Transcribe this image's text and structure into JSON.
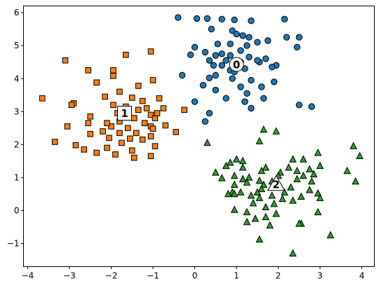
{
  "colors": {
    "class_0": "#1f77b4",
    "class_1": "#ff7f0e",
    "class_2": "#2ca02c",
    "edge": "#000000"
  },
  "chart_data": {
    "type": "scatter",
    "title": "",
    "xlabel": "",
    "ylabel": "",
    "xlim": [
      -4.1,
      4.3
    ],
    "ylim": [
      -1.7,
      6.2
    ],
    "xticks": [
      -4,
      -3,
      -2,
      -1,
      0,
      1,
      2,
      3,
      4
    ],
    "yticks": [
      -1,
      0,
      1,
      2,
      3,
      4,
      5,
      6
    ],
    "grid": false,
    "series": [
      {
        "marker": "circle",
        "color": "#1f77b4",
        "points": [
          [
            -0.4,
            5.85
          ],
          [
            0.05,
            5.82
          ],
          [
            0.3,
            5.82
          ],
          [
            0.65,
            5.8
          ],
          [
            0.95,
            5.78
          ],
          [
            1.35,
            5.75
          ],
          [
            2.15,
            5.8
          ],
          [
            0.4,
            5.5
          ],
          [
            0.9,
            5.45
          ],
          [
            1.0,
            5.35
          ],
          [
            1.15,
            5.3
          ],
          [
            1.3,
            5.25
          ],
          [
            2.2,
            5.25
          ],
          [
            2.5,
            5.25
          ],
          [
            1.75,
            5.15
          ],
          [
            0.55,
            5.05
          ],
          [
            0.85,
            5.05
          ],
          [
            1.25,
            5.0
          ],
          [
            0.0,
            4.95
          ],
          [
            -0.1,
            4.72
          ],
          [
            2.45,
            4.95
          ],
          [
            0.25,
            4.8
          ],
          [
            0.65,
            4.75
          ],
          [
            0.85,
            4.7
          ],
          [
            1.3,
            4.65
          ],
          [
            1.7,
            4.6
          ],
          [
            0.35,
            4.55
          ],
          [
            0.75,
            4.55
          ],
          [
            1.1,
            4.5
          ],
          [
            1.55,
            4.5
          ],
          [
            0.65,
            4.4
          ],
          [
            1.95,
            4.4
          ],
          [
            1.2,
            4.3
          ],
          [
            -0.3,
            4.1
          ],
          [
            0.5,
            4.1
          ],
          [
            0.35,
            4.02
          ],
          [
            0.9,
            4.0
          ],
          [
            1.35,
            3.95
          ],
          [
            0.2,
            3.8
          ],
          [
            1.1,
            3.75
          ],
          [
            1.6,
            3.75
          ],
          [
            1.25,
            3.55
          ],
          [
            0.5,
            3.65
          ],
          [
            0.75,
            3.4
          ],
          [
            1.65,
            3.4
          ],
          [
            1.2,
            3.3
          ],
          [
            0.0,
            3.3
          ],
          [
            2.5,
            3.2
          ],
          [
            2.8,
            3.15
          ],
          [
            1.35,
            3.1
          ],
          [
            0.35,
            2.95
          ],
          [
            0.25,
            2.7
          ],
          [
            0.45,
            4.4
          ],
          [
            0.85,
            4.25
          ],
          [
            1.85,
            4.35
          ],
          [
            1.5,
            5.1
          ],
          [
            1.1,
            4.85
          ],
          [
            0.5,
            4.7
          ],
          [
            1.9,
            3.9
          ],
          [
            0.95,
            4.2
          ],
          [
            1.5,
            4.55
          ],
          [
            1.0,
            4.4
          ]
        ]
      },
      {
        "marker": "square",
        "color": "#ff7f0e",
        "points": [
          [
            -3.1,
            4.55
          ],
          [
            -1.65,
            4.72
          ],
          [
            -1.05,
            4.82
          ],
          [
            -1.95,
            4.25
          ],
          [
            -2.55,
            4.25
          ],
          [
            -1.95,
            4.08
          ],
          [
            -1.0,
            3.95
          ],
          [
            -2.35,
            3.88
          ],
          [
            -1.35,
            3.78
          ],
          [
            -3.65,
            3.4
          ],
          [
            -1.8,
            3.6
          ],
          [
            -2.15,
            3.45
          ],
          [
            -1.5,
            3.42
          ],
          [
            -1.25,
            3.32
          ],
          [
            -0.85,
            3.4
          ],
          [
            -1.95,
            3.2
          ],
          [
            -1.65,
            3.15
          ],
          [
            -2.9,
            3.25
          ],
          [
            -2.95,
            3.2
          ],
          [
            -0.75,
            3.1
          ],
          [
            -0.25,
            3.05
          ],
          [
            -1.15,
            3.1
          ],
          [
            -1.35,
            3.05
          ],
          [
            -1.85,
            2.95
          ],
          [
            -1.05,
            2.9
          ],
          [
            -2.5,
            2.85
          ],
          [
            -1.45,
            2.8
          ],
          [
            -0.95,
            2.8
          ],
          [
            -1.2,
            2.65
          ],
          [
            -2.55,
            2.65
          ],
          [
            -2.0,
            2.55
          ],
          [
            -1.6,
            2.5
          ],
          [
            -1.05,
            2.55
          ],
          [
            -0.7,
            2.58
          ],
          [
            -3.05,
            2.55
          ],
          [
            -1.8,
            2.35
          ],
          [
            -1.4,
            2.35
          ],
          [
            -2.2,
            2.4
          ],
          [
            -0.45,
            2.38
          ],
          [
            -2.5,
            2.32
          ],
          [
            -1.05,
            2.25
          ],
          [
            -2.05,
            2.2
          ],
          [
            -1.55,
            2.18
          ],
          [
            -1.25,
            2.15
          ],
          [
            -3.35,
            2.08
          ],
          [
            -1.75,
            2.05
          ],
          [
            -2.85,
            1.98
          ],
          [
            -0.95,
            1.95
          ],
          [
            -2.1,
            1.9
          ],
          [
            -2.65,
            1.85
          ],
          [
            -2.35,
            1.75
          ],
          [
            -1.5,
            1.82
          ],
          [
            -1.9,
            1.7
          ],
          [
            -1.05,
            1.65
          ],
          [
            -1.45,
            1.6
          ],
          [
            -1.8,
            2.7
          ],
          [
            -0.9,
            2.95
          ],
          [
            -2.1,
            2.65
          ],
          [
            -1.0,
            2.48
          ]
        ]
      },
      {
        "marker": "triangle",
        "color": "#2ca02c",
        "points": [
          [
            1.65,
            2.45
          ],
          [
            1.95,
            2.4
          ],
          [
            0.3,
            2.05
          ],
          [
            1.55,
            2.1
          ],
          [
            3.8,
            1.95
          ],
          [
            2.95,
            1.75
          ],
          [
            3.95,
            1.65
          ],
          [
            1.0,
            1.55
          ],
          [
            1.15,
            1.5
          ],
          [
            2.6,
            1.55
          ],
          [
            2.35,
            1.55
          ],
          [
            3.0,
            1.35
          ],
          [
            0.85,
            1.45
          ],
          [
            2.25,
            1.3
          ],
          [
            1.15,
            1.3
          ],
          [
            0.75,
            1.35
          ],
          [
            1.7,
            1.3
          ],
          [
            2.75,
            1.25
          ],
          [
            0.5,
            1.15
          ],
          [
            1.6,
            1.2
          ],
          [
            2.05,
            1.15
          ],
          [
            3.65,
            1.2
          ],
          [
            2.85,
            1.1
          ],
          [
            2.6,
            1.05
          ],
          [
            2.0,
            1.05
          ],
          [
            0.95,
            1.05
          ],
          [
            1.3,
            1.0
          ],
          [
            0.65,
            0.98
          ],
          [
            2.45,
            0.95
          ],
          [
            1.55,
            0.9
          ],
          [
            1.85,
            0.88
          ],
          [
            1.25,
            0.85
          ],
          [
            2.8,
            0.88
          ],
          [
            0.95,
            0.78
          ],
          [
            3.85,
            0.88
          ],
          [
            1.65,
            0.78
          ],
          [
            1.95,
            0.75
          ],
          [
            2.3,
            0.7
          ],
          [
            1.6,
            0.65
          ],
          [
            2.75,
            0.62
          ],
          [
            0.9,
            0.55
          ],
          [
            1.1,
            0.55
          ],
          [
            1.5,
            0.55
          ],
          [
            0.95,
            0.5
          ],
          [
            2.95,
            0.52
          ],
          [
            0.8,
            0.5
          ],
          [
            1.35,
            0.45
          ],
          [
            2.55,
            0.42
          ],
          [
            1.85,
            0.45
          ],
          [
            3.0,
            0.38
          ],
          [
            1.55,
            0.38
          ],
          [
            2.1,
            0.35
          ],
          [
            1.4,
            0.22
          ],
          [
            2.35,
            0.3
          ],
          [
            1.9,
            0.2
          ],
          [
            1.7,
            0.1
          ],
          [
            0.95,
            0.02
          ],
          [
            1.25,
            -0.05
          ],
          [
            1.95,
            -0.1
          ],
          [
            2.95,
            -0.05
          ],
          [
            1.45,
            -0.25
          ],
          [
            1.7,
            -0.2
          ],
          [
            2.55,
            -0.4
          ],
          [
            2.5,
            -0.4
          ],
          [
            1.25,
            -0.35
          ],
          [
            1.8,
            -0.45
          ],
          [
            3.25,
            -0.75
          ],
          [
            1.55,
            -0.88
          ],
          [
            2.35,
            -1.3
          ],
          [
            2.15,
            0.55
          ],
          [
            1.15,
            0.95
          ],
          [
            2.45,
            1.2
          ]
        ]
      }
    ],
    "annotations": [
      {
        "text": "0",
        "x": 1.0,
        "y": 4.43,
        "box": "circle"
      },
      {
        "text": "1",
        "x": -1.68,
        "y": 2.95,
        "box": "square"
      },
      {
        "text": "2",
        "x": 1.95,
        "y": 0.8,
        "box": "triangle"
      }
    ]
  }
}
